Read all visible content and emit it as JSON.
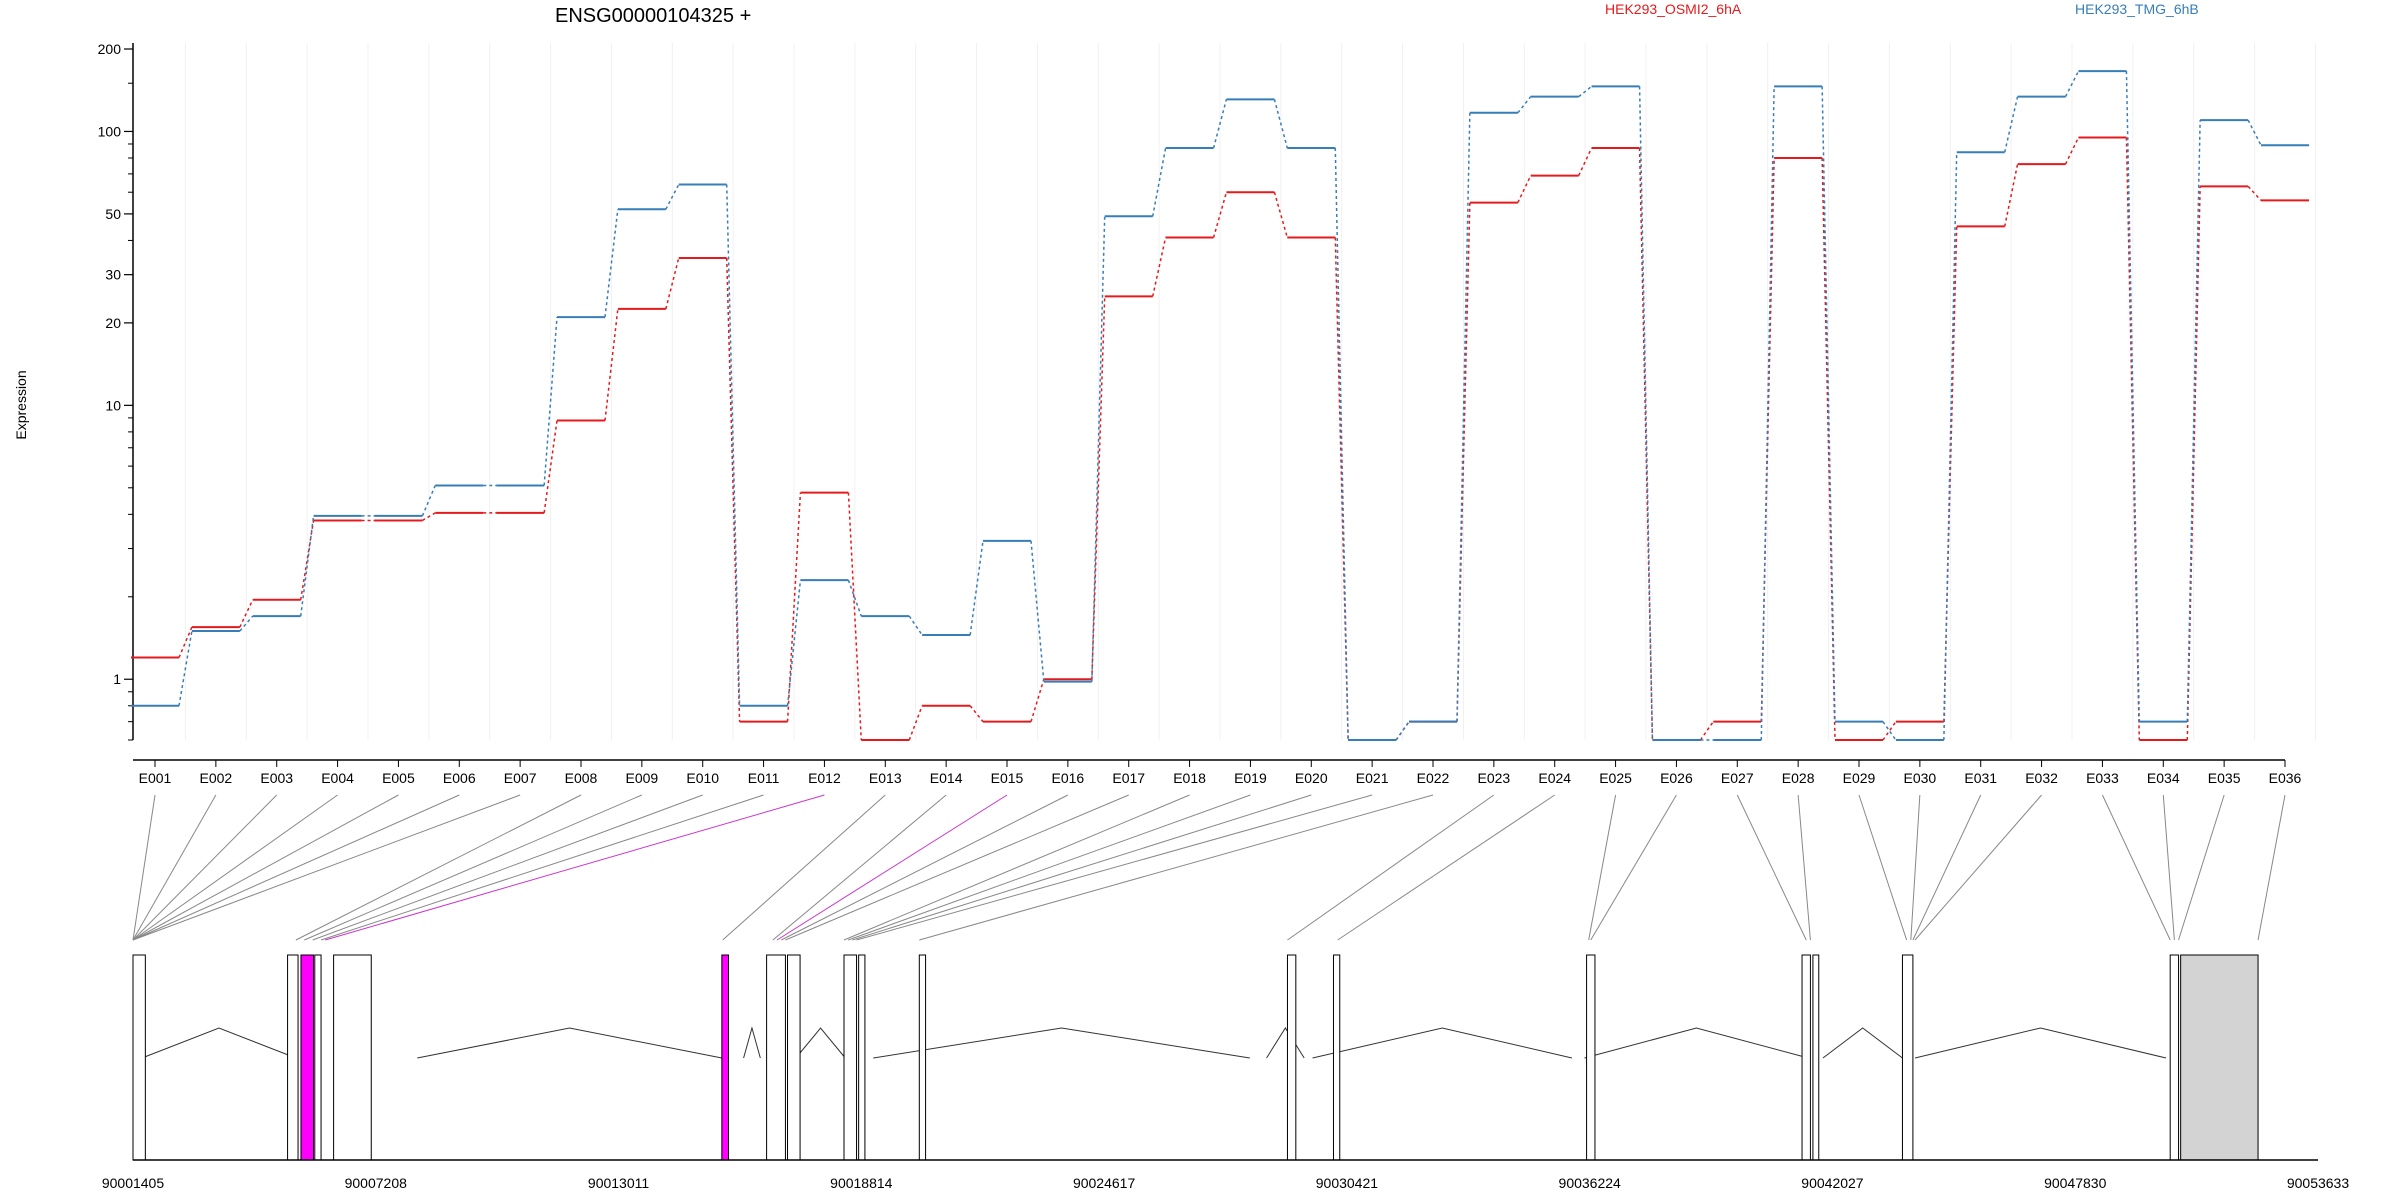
{
  "chart_data": {
    "type": "line",
    "title": "ENSG00000104325 +",
    "ylabel": "Expression",
    "yscale": "log",
    "ylim": [
      0.6,
      200
    ],
    "ytick_labels": [
      "1",
      "10",
      "20",
      "30",
      "50",
      "100",
      "200"
    ],
    "ytick_values": [
      1,
      10,
      20,
      30,
      50,
      100,
      200
    ],
    "grid": true,
    "legend_placement": "top",
    "colors": {
      "series1": "#e41a1c",
      "series2": "#377eb8",
      "highlight": "#ff00ff",
      "gray_box": "#d3d3d3"
    },
    "categories": [
      "E001",
      "E002",
      "E003",
      "E004",
      "E005",
      "E006",
      "E007",
      "E008",
      "E009",
      "E010",
      "E011",
      "E012",
      "E013",
      "E014",
      "E015",
      "E016",
      "E017",
      "E018",
      "E019",
      "E020",
      "E021",
      "E022",
      "E023",
      "E024",
      "E025",
      "E026",
      "E027",
      "E028",
      "E029",
      "E030",
      "E031",
      "E032",
      "E033",
      "E034",
      "E035",
      "E036"
    ],
    "series": [
      {
        "name": "HEK293_OSMI2_6hA",
        "color": "#e41a1c",
        "values": [
          1.2,
          1.55,
          1.95,
          3.8,
          3.8,
          4.05,
          4.05,
          8.8,
          22.5,
          34.5,
          0.7,
          4.8,
          0.6,
          0.8,
          0.7,
          1.0,
          25,
          41,
          60,
          41,
          0.6,
          0.7,
          55,
          69,
          87,
          0.6,
          0.7,
          80,
          0.6,
          0.7,
          45,
          76,
          95,
          0.6,
          63,
          56
        ]
      },
      {
        "name": "HEK293_TMG_6hB",
        "color": "#377eb8",
        "values": [
          0.8,
          1.5,
          1.7,
          3.95,
          3.95,
          5.1,
          5.1,
          21,
          52,
          64,
          0.8,
          2.3,
          1.7,
          1.45,
          3.2,
          0.98,
          49,
          87,
          131,
          87,
          0.6,
          0.7,
          117,
          134,
          146,
          0.6,
          0.6,
          146,
          0.7,
          0.6,
          84,
          134,
          166,
          0.7,
          110,
          89
        ]
      }
    ],
    "genomic_axis": {
      "range": [
        90001405,
        90053633
      ],
      "tick_labels": [
        "90001405",
        "90007208",
        "90013011",
        "90018814",
        "90024617",
        "90030421",
        "90036224",
        "90042027",
        "90047830",
        "90053633"
      ],
      "tick_values": [
        90001405,
        90007208,
        90013011,
        90018814,
        90024617,
        90030421,
        90036224,
        90042027,
        90047830,
        90053633
      ]
    },
    "highlighted_exons": [
      "E012",
      "E015"
    ]
  }
}
